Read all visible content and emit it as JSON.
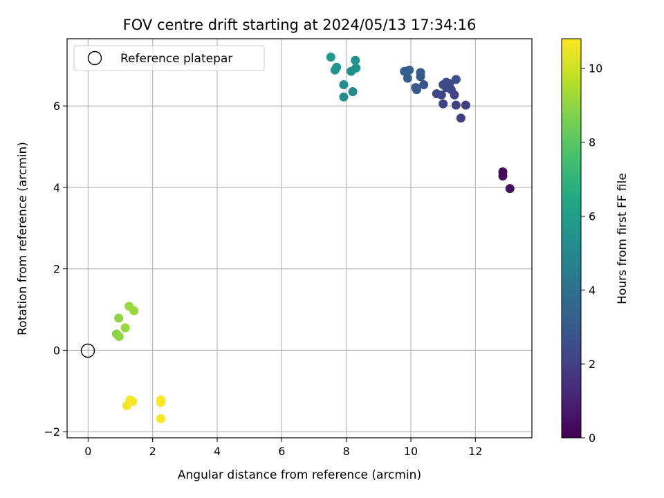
{
  "chart_data": {
    "type": "scatter",
    "title": "FOV centre drift starting at 2024/05/13 17:34:16",
    "xlabel": "Angular distance from reference (arcmin)",
    "ylabel": "Rotation from reference (arcmin)",
    "xlim": [
      -0.65,
      13.75
    ],
    "ylim": [
      -2.15,
      7.65
    ],
    "xticks": [
      0,
      2,
      4,
      6,
      8,
      10,
      12
    ],
    "yticks": [
      -2,
      0,
      2,
      4,
      6
    ],
    "xtick_labels": [
      "0",
      "2",
      "4",
      "6",
      "8",
      "10",
      "12"
    ],
    "ytick_labels": [
      "−2",
      "0",
      "2",
      "4",
      "6"
    ],
    "grid": true,
    "legend": {
      "position": "top-left",
      "entries": [
        "Reference platepar"
      ]
    },
    "reference_point": {
      "x": 0,
      "y": 0
    },
    "colorbar": {
      "label": "Hours from first FF file",
      "colormap": "viridis",
      "range": [
        0,
        10.8
      ],
      "ticks": [
        0,
        2,
        4,
        6,
        8,
        10
      ],
      "tick_labels": [
        "0",
        "2",
        "4",
        "6",
        "8",
        "10"
      ]
    },
    "points": [
      {
        "x": 12.85,
        "y": 4.38,
        "hours": 0.1
      },
      {
        "x": 12.85,
        "y": 4.28,
        "hours": 0.2
      },
      {
        "x": 13.07,
        "y": 3.97,
        "hours": 0.3
      },
      {
        "x": 11.55,
        "y": 5.7,
        "hours": 2.0
      },
      {
        "x": 11.7,
        "y": 6.02,
        "hours": 2.0
      },
      {
        "x": 11.4,
        "y": 6.02,
        "hours": 2.1
      },
      {
        "x": 11.0,
        "y": 6.05,
        "hours": 2.1
      },
      {
        "x": 11.35,
        "y": 6.27,
        "hours": 2.2
      },
      {
        "x": 10.95,
        "y": 6.27,
        "hours": 2.2
      },
      {
        "x": 10.8,
        "y": 6.3,
        "hours": 2.3
      },
      {
        "x": 11.25,
        "y": 6.4,
        "hours": 2.3
      },
      {
        "x": 11.1,
        "y": 6.45,
        "hours": 2.4
      },
      {
        "x": 11.2,
        "y": 6.55,
        "hours": 2.4
      },
      {
        "x": 11.0,
        "y": 6.52,
        "hours": 2.5
      },
      {
        "x": 11.1,
        "y": 6.58,
        "hours": 2.5
      },
      {
        "x": 11.4,
        "y": 6.65,
        "hours": 2.6
      },
      {
        "x": 10.4,
        "y": 6.52,
        "hours": 2.8
      },
      {
        "x": 10.15,
        "y": 6.45,
        "hours": 2.9
      },
      {
        "x": 10.18,
        "y": 6.4,
        "hours": 3.0
      },
      {
        "x": 10.3,
        "y": 6.72,
        "hours": 3.0
      },
      {
        "x": 10.3,
        "y": 6.82,
        "hours": 3.1
      },
      {
        "x": 9.9,
        "y": 6.68,
        "hours": 3.2
      },
      {
        "x": 9.95,
        "y": 6.88,
        "hours": 3.3
      },
      {
        "x": 9.8,
        "y": 6.85,
        "hours": 3.4
      },
      {
        "x": 8.2,
        "y": 6.35,
        "hours": 5.1
      },
      {
        "x": 7.92,
        "y": 6.22,
        "hours": 5.2
      },
      {
        "x": 7.92,
        "y": 6.52,
        "hours": 5.3
      },
      {
        "x": 8.15,
        "y": 6.85,
        "hours": 5.4
      },
      {
        "x": 8.3,
        "y": 6.93,
        "hours": 5.4
      },
      {
        "x": 8.28,
        "y": 7.12,
        "hours": 5.5
      },
      {
        "x": 7.65,
        "y": 6.88,
        "hours": 5.6
      },
      {
        "x": 7.7,
        "y": 6.95,
        "hours": 5.7
      },
      {
        "x": 7.52,
        "y": 7.2,
        "hours": 5.8
      },
      {
        "x": 0.88,
        "y": 0.4,
        "hours": 8.9
      },
      {
        "x": 0.96,
        "y": 0.34,
        "hours": 9.0
      },
      {
        "x": 0.95,
        "y": 0.79,
        "hours": 9.0
      },
      {
        "x": 1.15,
        "y": 0.55,
        "hours": 9.1
      },
      {
        "x": 1.27,
        "y": 1.08,
        "hours": 9.1
      },
      {
        "x": 1.42,
        "y": 0.97,
        "hours": 9.2
      },
      {
        "x": 1.2,
        "y": -1.36,
        "hours": 10.6
      },
      {
        "x": 1.3,
        "y": -1.22,
        "hours": 10.7
      },
      {
        "x": 1.38,
        "y": -1.26,
        "hours": 10.7
      },
      {
        "x": 2.25,
        "y": -1.22,
        "hours": 10.8
      },
      {
        "x": 2.25,
        "y": -1.28,
        "hours": 10.8
      },
      {
        "x": 2.25,
        "y": -1.68,
        "hours": 10.8
      }
    ]
  }
}
